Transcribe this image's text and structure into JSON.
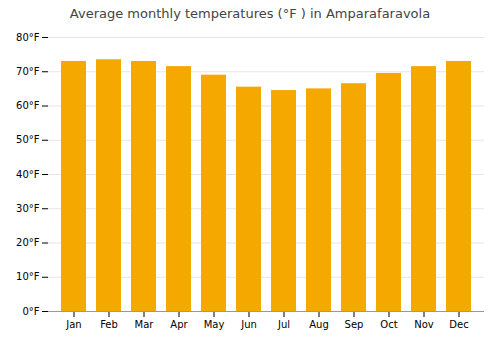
{
  "chart_data": {
    "type": "bar",
    "title": "Average monthly temperatures (°F ) in Amparafaravola",
    "categories": [
      "Jan",
      "Feb",
      "Mar",
      "Apr",
      "May",
      "Jun",
      "Jul",
      "Aug",
      "Sep",
      "Oct",
      "Nov",
      "Dec"
    ],
    "values": [
      73,
      73.5,
      73,
      71.5,
      69,
      65.5,
      64.5,
      65,
      66.5,
      69.5,
      71.5,
      73
    ],
    "color": "#F5A800",
    "ylim": [
      0,
      80
    ],
    "yticks": [
      {
        "value": 0,
        "label": "0°F"
      },
      {
        "value": 10,
        "label": "10°F"
      },
      {
        "value": 20,
        "label": "20°F"
      },
      {
        "value": 30,
        "label": "30°F"
      },
      {
        "value": 40,
        "label": "40°F"
      },
      {
        "value": 50,
        "label": "50°F"
      },
      {
        "value": 60,
        "label": "60°F"
      },
      {
        "value": 70,
        "label": "70°F"
      },
      {
        "value": 80,
        "label": "80°F"
      }
    ],
    "grid": true
  }
}
